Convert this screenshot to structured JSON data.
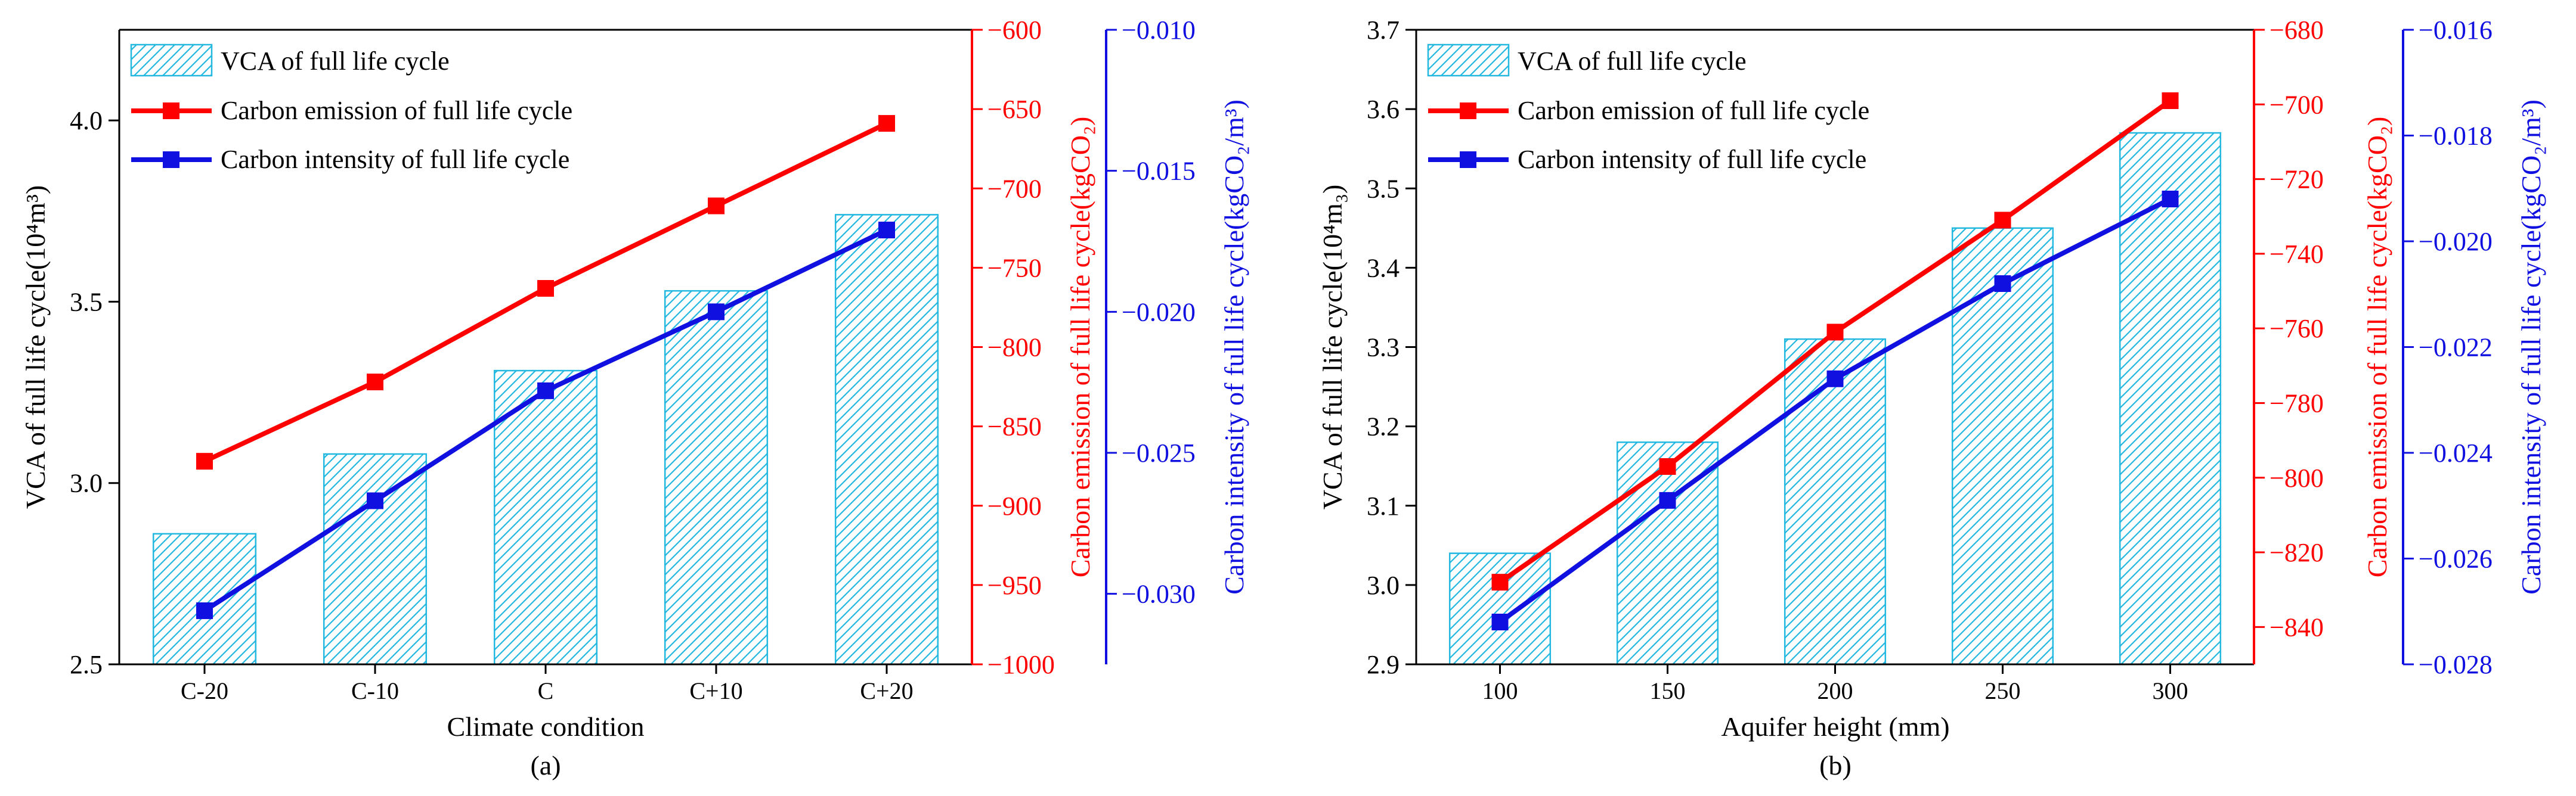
{
  "colors": {
    "bar_stroke": "#22b8e0",
    "bar_hatch": "#22b8e0",
    "emission": "#ff0000",
    "intensity": "#1010e0",
    "axis": "#000000"
  },
  "legend": {
    "bar": "VCA of full life cycle",
    "emission": "Carbon emission of full life cycle",
    "intensity": "Carbon intensity of full life cycle"
  },
  "chart_data": [
    {
      "type": "bar",
      "panel_label": "(a)",
      "xlabel": "Climate condition",
      "categories": [
        "C-20",
        "C-10",
        "C",
        "C+10",
        "C+20"
      ],
      "bar_series": {
        "name": "VCA of full life cycle",
        "values": [
          2.86,
          3.08,
          3.31,
          3.53,
          3.74
        ]
      },
      "line_series": [
        {
          "name": "Carbon emission of full life cycle",
          "axis": "right1",
          "values": [
            -872,
            -822,
            -763,
            -711,
            -659
          ]
        },
        {
          "name": "Carbon intensity of full life cycle",
          "axis": "right2",
          "values": [
            -0.0306,
            -0.0267,
            -0.0228,
            -0.02,
            -0.0171
          ]
        }
      ],
      "left_axis": {
        "label": "VCA of full life cycle(10⁴m³)",
        "range": [
          2.5,
          4.25
        ],
        "ticks": [
          "2.5",
          "3.0",
          "3.5",
          "4.0"
        ],
        "tick_values": [
          2.5,
          3.0,
          3.5,
          4.0
        ]
      },
      "right1_axis": {
        "label": "Carbon emission of full life cycle(kgCO₂)",
        "range": [
          -1000,
          -600
        ],
        "ticks": [
          "−1000",
          "−950",
          "−900",
          "−850",
          "−800",
          "−750",
          "−700",
          "−650",
          "−600"
        ],
        "tick_values": [
          -1000,
          -950,
          -900,
          -850,
          -800,
          -750,
          -700,
          -650,
          -600
        ]
      },
      "right2_axis": {
        "label": "Carbon intensity of full life cycle(kgCO₂/m³)",
        "range": [
          -0.0325,
          -0.01
        ],
        "ticks": [
          "−0.030",
          "−0.025",
          "−0.020",
          "−0.015",
          "−0.010"
        ],
        "tick_values": [
          -0.03,
          -0.025,
          -0.02,
          -0.015,
          -0.01
        ]
      },
      "legend_placement": "top-left",
      "grid": false
    },
    {
      "type": "bar",
      "panel_label": "(b)",
      "xlabel": "Aquifer height (mm)",
      "categories": [
        "100",
        "150",
        "200",
        "250",
        "300"
      ],
      "bar_series": {
        "name": "VCA of full life cycle",
        "values": [
          3.04,
          3.18,
          3.31,
          3.45,
          3.57
        ]
      },
      "line_series": [
        {
          "name": "Carbon emission of full life cycle",
          "axis": "right1",
          "values": [
            -828,
            -797,
            -761,
            -731,
            -699
          ]
        },
        {
          "name": "Carbon intensity of full life cycle",
          "axis": "right2",
          "values": [
            -0.0272,
            -0.0249,
            -0.0226,
            -0.0208,
            -0.0192
          ]
        }
      ],
      "left_axis": {
        "label": "VCA of full life cycle(10⁴m₃)",
        "range": [
          2.9,
          3.7
        ],
        "ticks": [
          "2.9",
          "3.0",
          "3.1",
          "3.2",
          "3.3",
          "3.4",
          "3.5",
          "3.6",
          "3.7"
        ],
        "tick_values": [
          2.9,
          3.0,
          3.1,
          3.2,
          3.3,
          3.4,
          3.5,
          3.6,
          3.7
        ]
      },
      "right1_axis": {
        "label": "Carbon emission of full life cycle(kgCO₂)",
        "range": [
          -850,
          -680
        ],
        "ticks": [
          "−840",
          "−820",
          "−800",
          "−780",
          "−760",
          "−740",
          "−720",
          "−700",
          "−680"
        ],
        "tick_values": [
          -840,
          -820,
          -800,
          -780,
          -760,
          -740,
          -720,
          -700,
          -680
        ]
      },
      "right2_axis": {
        "label": "Carbon intensity of full life cycle(kgCO₂/m³)",
        "range": [
          -0.028,
          -0.016
        ],
        "ticks": [
          "−0.028",
          "−0.026",
          "−0.024",
          "−0.022",
          "−0.020",
          "−0.018",
          "−0.016"
        ],
        "tick_values": [
          -0.028,
          -0.026,
          -0.024,
          -0.022,
          -0.02,
          -0.018,
          -0.016
        ]
      },
      "legend_placement": "top-left",
      "grid": false
    }
  ]
}
